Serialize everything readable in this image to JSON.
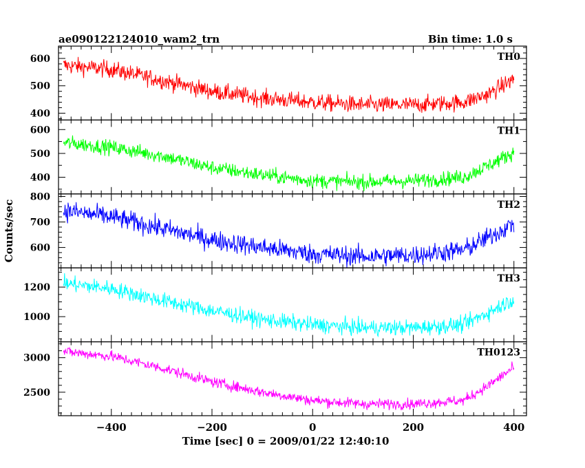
{
  "header": {
    "title": "ae090122124010_wam2_trn",
    "bin_time": "Bin time: 1.0 s"
  },
  "chart_data": {
    "type": "line",
    "title": "ae090122124010_wam2_trn",
    "subtitle": "Bin time: 1.0 s",
    "xlabel": "Time [sec] 0 = 2009/01/22 12:40:10",
    "ylabel": "Counts/sec",
    "xlim": [
      -505,
      425
    ],
    "x_ticks": [
      -400,
      -200,
      0,
      200,
      400
    ],
    "x_tick_labels": [
      "−400",
      "−200",
      "0",
      "200",
      "400"
    ],
    "x_range": [
      -495,
      400
    ],
    "grid": false,
    "panels": [
      {
        "name": "TH0",
        "color": "#ff0000",
        "ylim": [
          375,
          645
        ],
        "y_ticks": [
          400,
          500,
          600
        ],
        "y_tick_labels": [
          "400",
          "500",
          "600"
        ],
        "trend_x": [
          -495,
          -400,
          -300,
          -200,
          -100,
          0,
          100,
          200,
          300,
          350,
          400
        ],
        "trend_y": [
          575,
          560,
          520,
          480,
          455,
          440,
          430,
          430,
          440,
          470,
          525
        ],
        "noise": 22
      },
      {
        "name": "TH1",
        "color": "#00ff00",
        "ylim": [
          330,
          640
        ],
        "y_ticks": [
          400,
          500,
          600
        ],
        "y_tick_labels": [
          "400",
          "500",
          "600"
        ],
        "trend_x": [
          -495,
          -400,
          -300,
          -200,
          -100,
          0,
          100,
          200,
          300,
          350,
          400
        ],
        "trend_y": [
          545,
          525,
          490,
          440,
          410,
          385,
          380,
          385,
          400,
          450,
          505
        ],
        "noise": 22
      },
      {
        "name": "TH2",
        "color": "#0000ff",
        "ylim": [
          520,
          810
        ],
        "y_ticks": [
          600,
          700,
          800
        ],
        "y_tick_labels": [
          "600",
          "700",
          "800"
        ],
        "trend_x": [
          -495,
          -400,
          -300,
          -200,
          -100,
          0,
          100,
          200,
          300,
          350,
          400
        ],
        "trend_y": [
          745,
          720,
          675,
          630,
          600,
          575,
          565,
          570,
          590,
          640,
          695
        ],
        "noise": 28
      },
      {
        "name": "TH3",
        "color": "#00ffff",
        "ylim": [
          830,
          1330
        ],
        "y_ticks": [
          1000,
          1200
        ],
        "y_tick_labels": [
          "1000",
          "1200"
        ],
        "trend_x": [
          -495,
          -400,
          -300,
          -200,
          -100,
          0,
          100,
          200,
          300,
          350,
          400
        ],
        "trend_y": [
          1225,
          1190,
          1110,
          1040,
          980,
          945,
          925,
          925,
          945,
          1030,
          1120
        ],
        "noise": 38
      },
      {
        "name": "TH0123",
        "color": "#ff00ff",
        "ylim": [
          2160,
          3230
        ],
        "y_ticks": [
          2500,
          3000
        ],
        "y_tick_labels": [
          "2500",
          "3000"
        ],
        "trend_x": [
          -495,
          -400,
          -300,
          -200,
          -100,
          0,
          100,
          200,
          300,
          350,
          400
        ],
        "trend_y": [
          3090,
          3020,
          2850,
          2650,
          2500,
          2380,
          2330,
          2330,
          2380,
          2600,
          2860
        ],
        "noise": 55
      }
    ]
  }
}
